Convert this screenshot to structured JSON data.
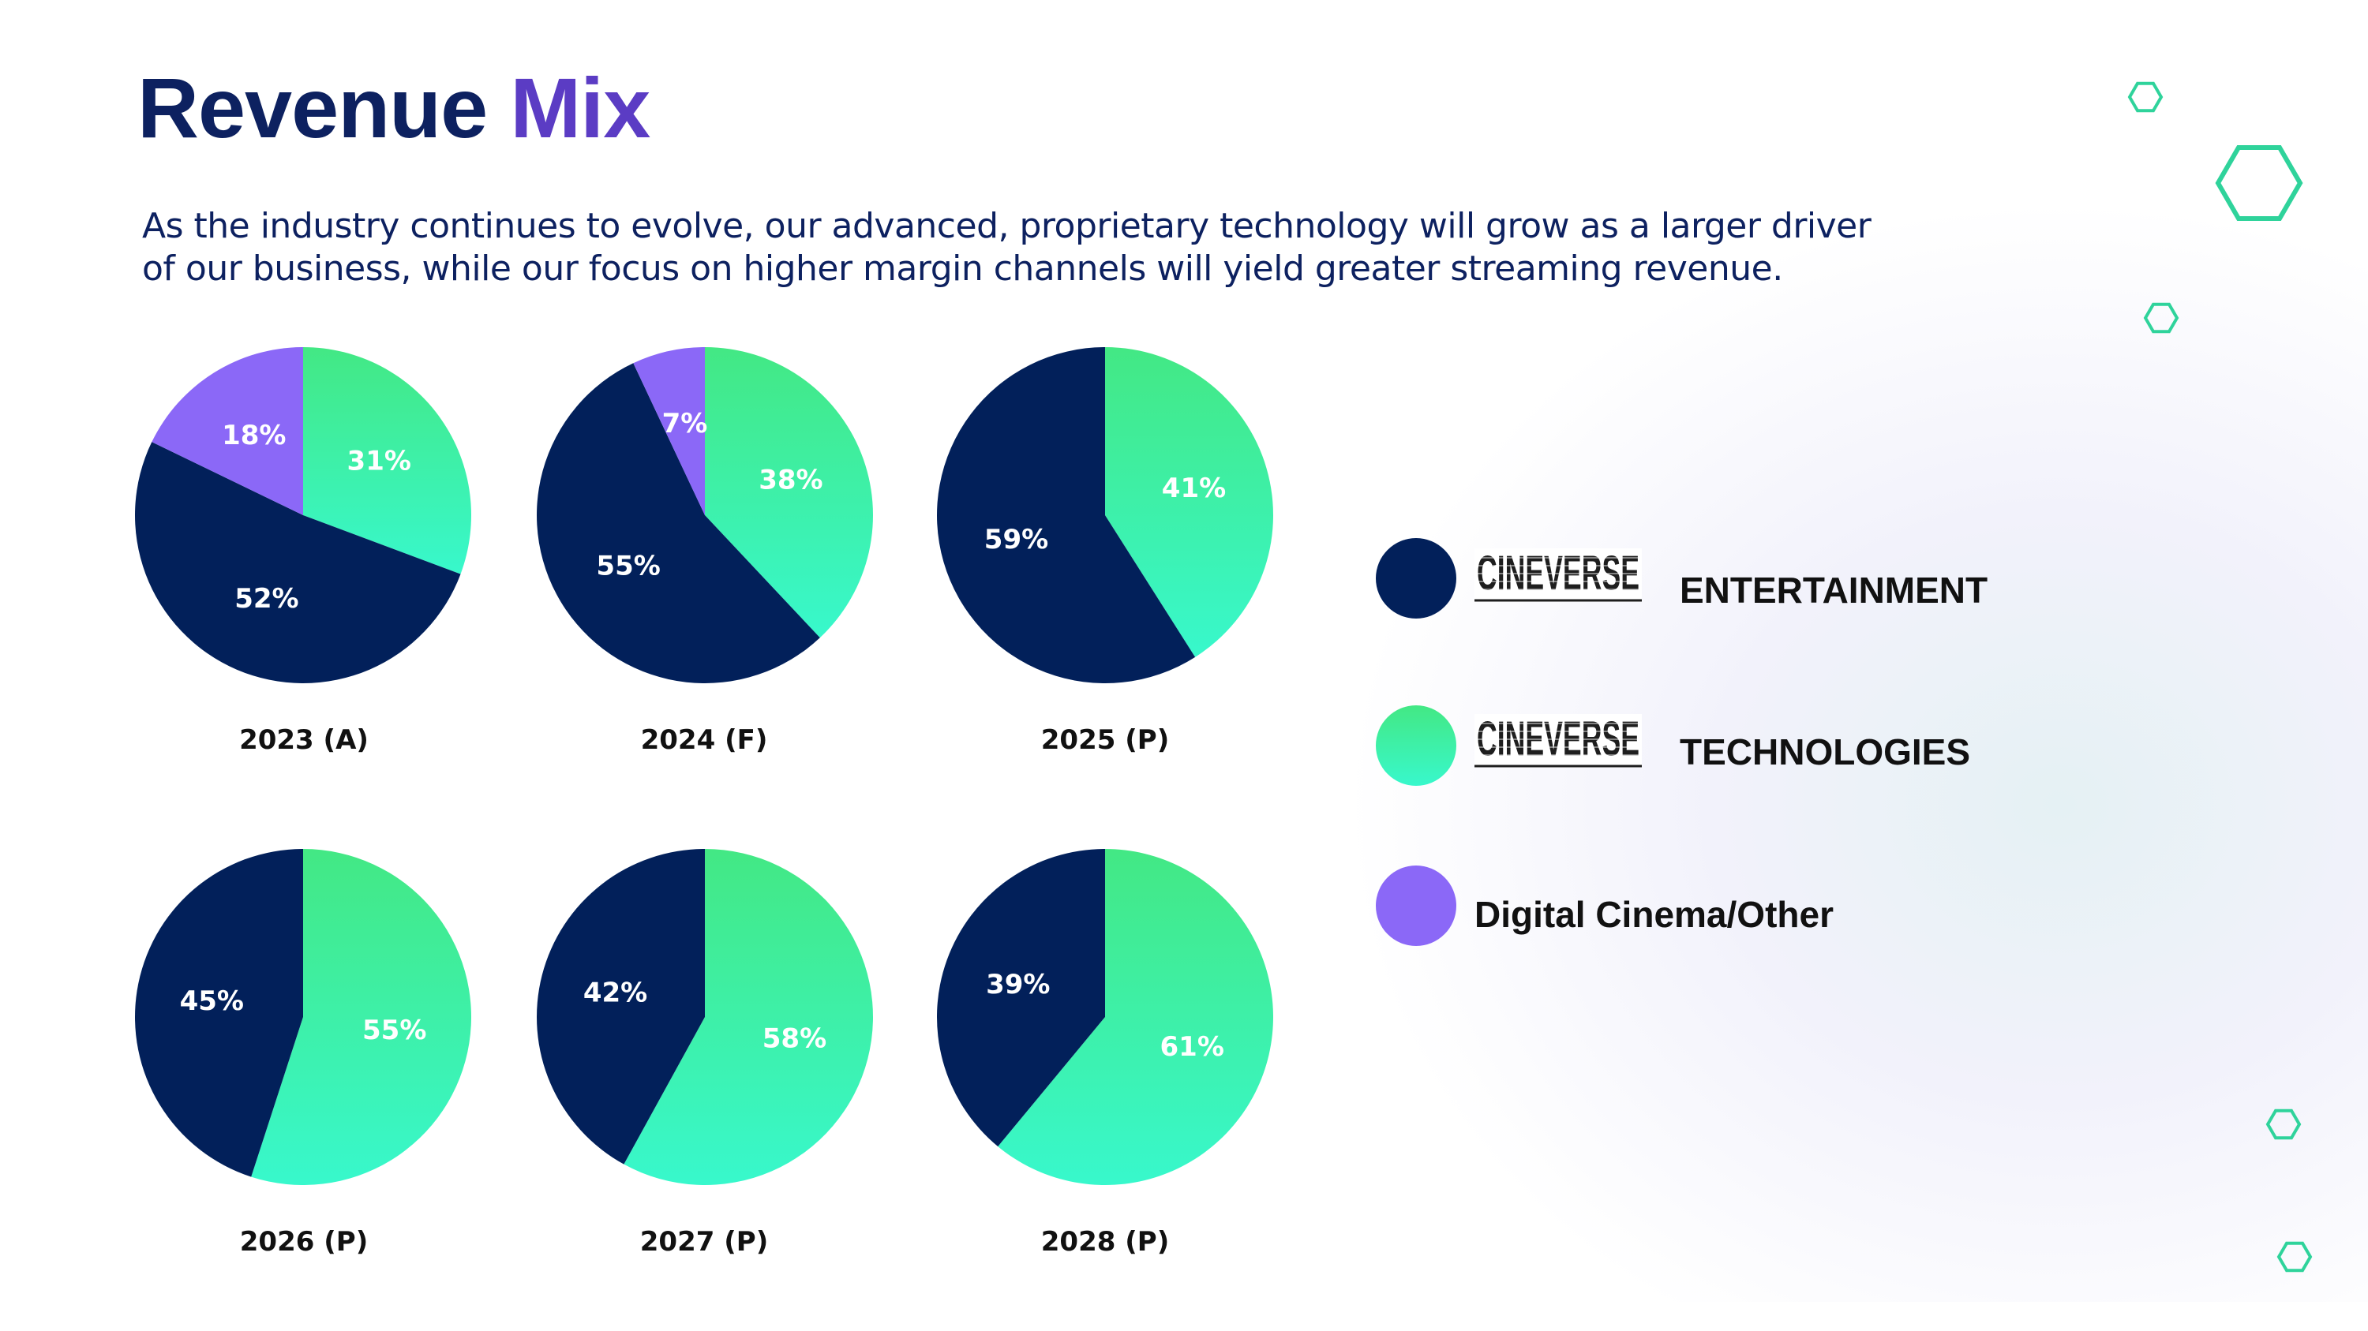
{
  "title": {
    "part1": "Revenue",
    "part2": "Mix"
  },
  "subtitle": "As the industry continues to evolve,  our advanced, proprietary technology will grow as a larger driver of our business, while our focus on higher margin channels will yield greater streaming revenue.",
  "colors": {
    "entertainment": "#02205a",
    "technologies_top": "#43e884",
    "technologies_bottom": "#38f8cc",
    "digital_cinema": "#8b68f7",
    "title_accent": "#5b3cc4",
    "title": "#0d2160",
    "hexagon": "#2fd39b"
  },
  "legend": {
    "brand": "CINEVERSE",
    "entertainment": "ENTERTAINMENT",
    "technologies": "TECHNOLOGIES",
    "digital_cinema": "Digital Cinema/Other"
  },
  "chart_data": [
    {
      "type": "pie",
      "title": "2023 (A)",
      "series": [
        {
          "name": "Technologies",
          "value": 31,
          "label": "31%"
        },
        {
          "name": "Entertainment",
          "value": 52,
          "label": "52%"
        },
        {
          "name": "Digital Cinema/Other",
          "value": 18,
          "label": "18%"
        }
      ]
    },
    {
      "type": "pie",
      "title": "2024 (F)",
      "series": [
        {
          "name": "Technologies",
          "value": 38,
          "label": "38%"
        },
        {
          "name": "Entertainment",
          "value": 55,
          "label": "55%"
        },
        {
          "name": "Digital Cinema/Other",
          "value": 7,
          "label": "7%"
        }
      ]
    },
    {
      "type": "pie",
      "title": "2025 (P)",
      "series": [
        {
          "name": "Technologies",
          "value": 41,
          "label": "41%"
        },
        {
          "name": "Entertainment",
          "value": 59,
          "label": "59%"
        }
      ]
    },
    {
      "type": "pie",
      "title": "2026 (P)",
      "series": [
        {
          "name": "Technologies",
          "value": 55,
          "label": "55%"
        },
        {
          "name": "Entertainment",
          "value": 45,
          "label": "45%"
        }
      ]
    },
    {
      "type": "pie",
      "title": "2027 (P)",
      "series": [
        {
          "name": "Technologies",
          "value": 58,
          "label": "58%"
        },
        {
          "name": "Entertainment",
          "value": 42,
          "label": "42%"
        }
      ]
    },
    {
      "type": "pie",
      "title": "2028 (P)",
      "series": [
        {
          "name": "Technologies",
          "value": 61,
          "label": "61%"
        },
        {
          "name": "Entertainment",
          "value": 39,
          "label": "39%"
        }
      ]
    }
  ]
}
